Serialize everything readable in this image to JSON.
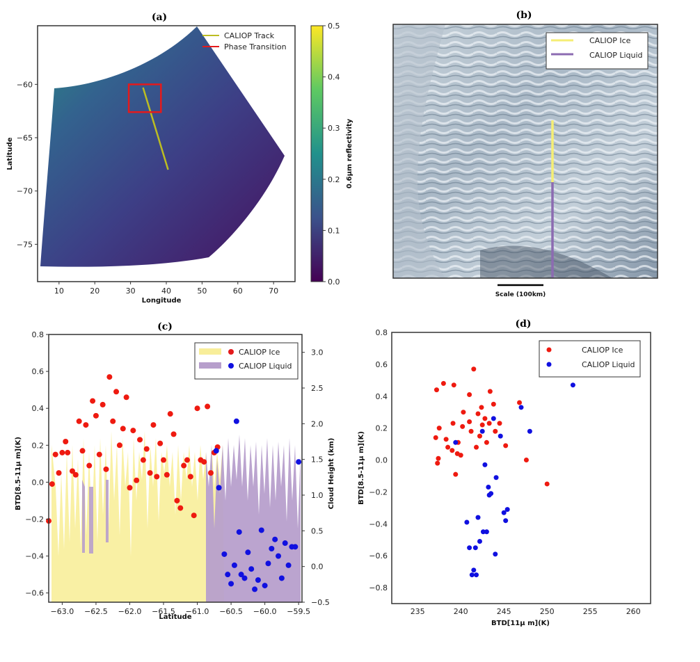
{
  "chart_data": [
    {
      "panel": "a",
      "type": "heatmap",
      "title": "(a)",
      "xlabel": "Longitude",
      "ylabel": "Latitude",
      "xticks": [
        "10",
        "20",
        "30",
        "40",
        "50",
        "60",
        "70"
      ],
      "yticks": [
        "−60",
        "−65",
        "−70",
        "−75"
      ],
      "xlim": [
        4,
        76
      ],
      "ylim": [
        -78.5,
        -54.5
      ],
      "colorbar": {
        "label": "0.6μm reflectivity",
        "ticks": [
          "0.0",
          "0.1",
          "0.2",
          "0.3",
          "0.4",
          "0.5"
        ],
        "range": [
          0,
          0.5
        ],
        "colormap": [
          "#440154",
          "#3b528b",
          "#21918c",
          "#5ec962",
          "#fde725"
        ]
      },
      "legend": [
        {
          "label": "CALIOP Track",
          "color": "#bcbd22"
        },
        {
          "label": "Phase Transition",
          "color": "#e41a1c"
        }
      ],
      "track": {
        "lon": [
          33.5,
          40.5
        ],
        "lat": [
          -60.3,
          -68
        ]
      },
      "transition_box": {
        "lon": [
          29.5,
          38.5
        ],
        "lat": [
          -60,
          -62.6
        ]
      }
    },
    {
      "panel": "b",
      "type": "image",
      "title": "(b)",
      "scale_label": "Scale (100km)",
      "legend": [
        {
          "label": "CALIOP Ice",
          "color": "#f5ee74"
        },
        {
          "label": "CALIOP Liquid",
          "color": "#8c6bb1"
        }
      ]
    },
    {
      "panel": "c",
      "type": "scatter",
      "title": "(c)",
      "xlabel": "Latitude",
      "ylabel": "BTD[8.5-11μ m](K)",
      "ylabel_right": "Cloud Height (km)",
      "xlim": [
        -63.2,
        -59.45
      ],
      "ylim": [
        -0.65,
        0.8
      ],
      "ylim_right": [
        -0.5,
        3.25
      ],
      "xticks": [
        "−63.0",
        "−62.5",
        "−62.0",
        "−61.5",
        "−61.0",
        "−60.5",
        "−60.0",
        "−59.5"
      ],
      "yticks": [
        "−0.6",
        "−0.4",
        "−0.2",
        "0.0",
        "0.2",
        "0.4",
        "0.6",
        "0.8"
      ],
      "yticks_right": [
        "−0.5",
        "0.0",
        "0.5",
        "1.0",
        "1.5",
        "2.0",
        "2.5",
        "3.0"
      ],
      "legend": [
        {
          "label": "CALIOP Ice",
          "bar_color": "#f8ee9a",
          "dot_color": "#e41a1c"
        },
        {
          "label": "CALIOP Liquid",
          "bar_color": "#b79fcc",
          "dot_color": "#1010e0"
        }
      ],
      "series": [
        {
          "name": "CALIOP Ice",
          "color": "#ee1a10",
          "x": [
            -63.2,
            -63.15,
            -63.1,
            -63.05,
            -63.0,
            -62.95,
            -62.92,
            -62.85,
            -62.8,
            -62.75,
            -62.7,
            -62.65,
            -62.6,
            -62.55,
            -62.5,
            -62.45,
            -62.4,
            -62.35,
            -62.3,
            -62.25,
            -62.2,
            -62.15,
            -62.1,
            -62.05,
            -62.0,
            -61.95,
            -61.9,
            -61.85,
            -61.8,
            -61.75,
            -61.7,
            -61.65,
            -61.6,
            -61.55,
            -61.5,
            -61.45,
            -61.4,
            -61.35,
            -61.3,
            -61.25,
            -61.2,
            -61.15,
            -61.1,
            -61.05,
            -61.0,
            -60.95,
            -60.9,
            -60.85,
            -60.8,
            -60.75,
            -60.7
          ],
          "y": [
            -0.21,
            -0.01,
            0.15,
            0.05,
            0.16,
            0.22,
            0.16,
            0.06,
            0.04,
            0.33,
            0.17,
            0.31,
            0.09,
            0.44,
            0.36,
            0.15,
            0.42,
            0.07,
            0.57,
            0.33,
            0.49,
            0.2,
            0.29,
            0.46,
            -0.03,
            0.28,
            0.01,
            0.23,
            0.12,
            0.18,
            0.05,
            0.31,
            0.03,
            0.21,
            0.12,
            0.04,
            0.37,
            0.26,
            -0.1,
            -0.14,
            0.09,
            0.12,
            0.03,
            -0.18,
            0.4,
            0.12,
            0.11,
            0.41,
            0.05,
            0.16,
            0.19
          ]
        },
        {
          "name": "CALIOP Liquid",
          "color": "#1010e0",
          "x": [
            -60.72,
            -60.68,
            -60.6,
            -60.55,
            -60.5,
            -60.45,
            -60.42,
            -60.38,
            -60.35,
            -60.3,
            -60.25,
            -60.2,
            -60.15,
            -60.1,
            -60.05,
            -60.0,
            -59.95,
            -59.9,
            -59.85,
            -59.8,
            -59.75,
            -59.7,
            -59.65,
            -59.6,
            -59.55,
            -59.5
          ],
          "y": [
            0.17,
            -0.03,
            -0.39,
            -0.5,
            -0.55,
            -0.45,
            0.33,
            -0.27,
            -0.5,
            -0.52,
            -0.38,
            -0.47,
            -0.58,
            -0.53,
            -0.26,
            -0.56,
            -0.44,
            -0.36,
            -0.31,
            -0.4,
            -0.52,
            -0.33,
            -0.45,
            -0.35,
            -0.35,
            0.11
          ]
        }
      ]
    },
    {
      "panel": "d",
      "type": "scatter",
      "title": "(d)",
      "xlabel": "BTD[11μ m](K)",
      "ylabel": "BTD[8.5-11μ m](K)",
      "xlim": [
        232,
        262
      ],
      "ylim": [
        -0.9,
        0.8
      ],
      "xticks": [
        "235",
        "240",
        "245",
        "250",
        "255",
        "260"
      ],
      "yticks": [
        "−0.8",
        "−0.6",
        "−0.4",
        "−0.2",
        "0.0",
        "0.2",
        "0.4",
        "0.6",
        "0.8"
      ],
      "legend_position": "top-right",
      "series": [
        {
          "name": "CALIOP Ice",
          "color": "#ee1a10",
          "x": [
            237.2,
            237.5,
            238.0,
            238.5,
            239.0,
            239.2,
            239.7,
            240.0,
            240.3,
            241.0,
            241.5,
            242.0,
            242.5,
            243.0,
            243.4,
            244.0,
            244.5,
            245.2,
            246.8,
            247.6,
            250.0,
            237.1,
            237.4,
            238.3,
            239.1,
            239.4,
            240.2,
            241.2,
            241.8,
            242.4,
            242.8,
            243.3,
            237.3,
            239.6,
            241.0,
            242.2,
            243.8
          ],
          "y": [
            0.44,
            0.2,
            0.48,
            0.08,
            0.06,
            0.47,
            0.11,
            0.03,
            0.3,
            0.41,
            0.57,
            0.29,
            0.22,
            0.11,
            0.43,
            0.18,
            0.23,
            0.09,
            0.36,
            0.0,
            -0.15,
            0.14,
            0.01,
            0.13,
            0.23,
            -0.09,
            0.21,
            0.18,
            0.08,
            0.33,
            0.26,
            0.23,
            -0.02,
            0.04,
            0.24,
            0.15,
            0.35
          ]
        },
        {
          "name": "CALIOP Liquid",
          "color": "#1010e0",
          "x": [
            239.4,
            240.7,
            241.0,
            241.3,
            241.5,
            241.7,
            242.0,
            242.2,
            242.6,
            242.8,
            243.0,
            243.2,
            243.5,
            243.8,
            244.1,
            244.6,
            245.0,
            245.4,
            247.0,
            248.0,
            253.0,
            241.8,
            242.5,
            243.3,
            244.0,
            245.2
          ],
          "y": [
            0.11,
            -0.39,
            -0.55,
            -0.72,
            -0.69,
            -0.55,
            -0.36,
            -0.51,
            -0.45,
            -0.03,
            -0.45,
            -0.17,
            -0.21,
            0.26,
            -0.11,
            0.15,
            -0.33,
            -0.31,
            0.33,
            0.18,
            0.47,
            -0.72,
            0.18,
            -0.22,
            -0.59,
            -0.38
          ]
        }
      ]
    }
  ]
}
